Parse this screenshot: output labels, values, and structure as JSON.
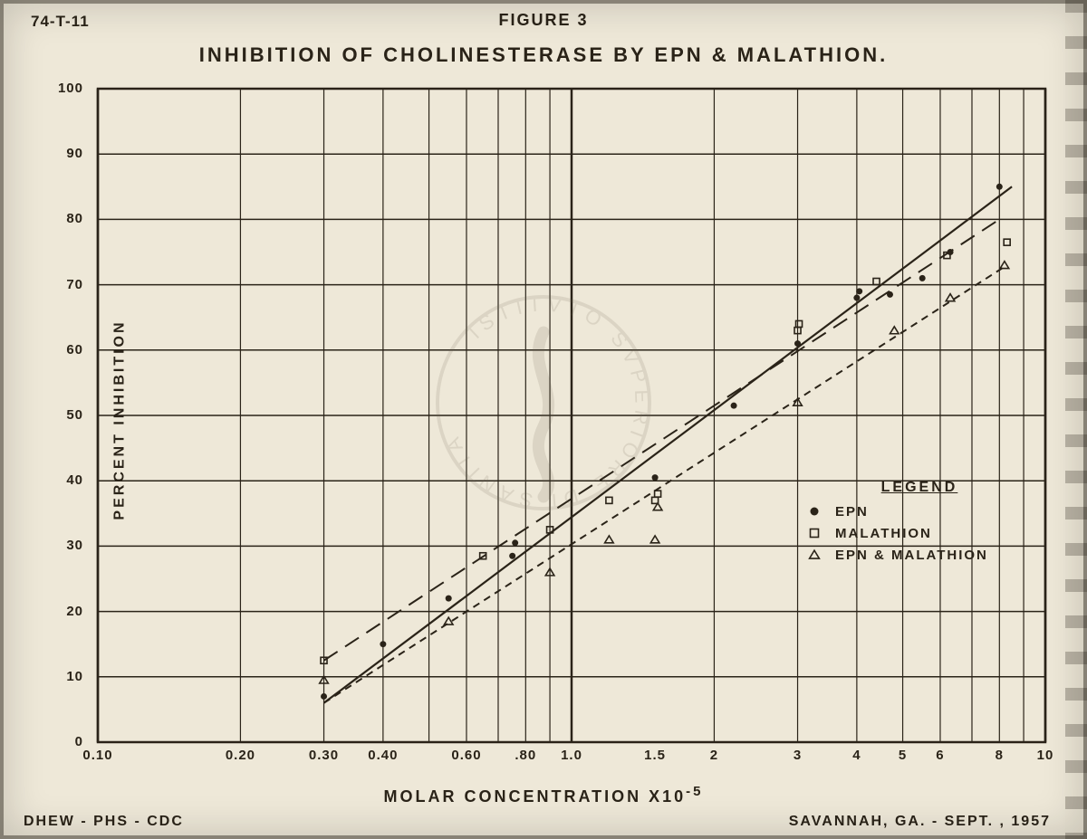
{
  "doc_id": "74-T-11",
  "figure_label": "FIGURE 3",
  "title": "INHIBITION  OF  CHOLINESTERASE  BY  EPN  &  MALATHION.",
  "footer_left": "DHEW - PHS - CDC",
  "footer_right": "SAVANNAH, GA. - SEPT. , 1957",
  "ylabel": "PERCENT  INHIBITION",
  "xlabel": "MOLAR  CONCENTRATION  X10",
  "xlabel_sup": "-5",
  "chart": {
    "type": "scatter-with-fit-lines-logx",
    "background_color": "#eee8d8",
    "ink_color": "#2a2318",
    "frame_linewidth": 2.5,
    "grid_linewidth": 1.5,
    "minor_grid_linewidth": 1.2,
    "x_scale": "log10",
    "xlim": [
      0.1,
      10
    ],
    "x_major": [
      0.1,
      1.0,
      10
    ],
    "x_ticks": [
      {
        "v": 0.1,
        "label": "0.10"
      },
      {
        "v": 0.2,
        "label": "0.20"
      },
      {
        "v": 0.3,
        "label": "0.30"
      },
      {
        "v": 0.4,
        "label": "0.40"
      },
      {
        "v": 0.6,
        "label": "0.60"
      },
      {
        "v": 0.8,
        "label": ".80"
      },
      {
        "v": 1.0,
        "label": "1.0"
      },
      {
        "v": 1.5,
        "label": "1.5"
      },
      {
        "v": 2.0,
        "label": "2"
      },
      {
        "v": 3.0,
        "label": "3"
      },
      {
        "v": 4.0,
        "label": "4"
      },
      {
        "v": 5.0,
        "label": "5"
      },
      {
        "v": 6.0,
        "label": "6"
      },
      {
        "v": 8.0,
        "label": "8"
      },
      {
        "v": 10.0,
        "label": "10"
      }
    ],
    "y_scale": "linear",
    "ylim": [
      0,
      100
    ],
    "ytick_step": 10,
    "legend": {
      "title": "LEGEND",
      "items": [
        {
          "marker": "dot",
          "label": "EPN"
        },
        {
          "marker": "square",
          "label": "MALATHION"
        },
        {
          "marker": "triangle",
          "label": "EPN  &  MALATHION"
        }
      ]
    },
    "series": [
      {
        "name": "EPN",
        "marker": "dot",
        "marker_size": 7,
        "color": "#2a2318",
        "fit": {
          "style": "solid",
          "width": 2.2,
          "p1": {
            "x": 0.3,
            "y": 6
          },
          "p2": {
            "x": 8.5,
            "y": 85
          }
        },
        "points": [
          {
            "x": 0.3,
            "y": 7
          },
          {
            "x": 0.4,
            "y": 15
          },
          {
            "x": 0.55,
            "y": 22
          },
          {
            "x": 0.75,
            "y": 28.5
          },
          {
            "x": 0.76,
            "y": 30.5
          },
          {
            "x": 1.5,
            "y": 40.5
          },
          {
            "x": 2.2,
            "y": 51.5
          },
          {
            "x": 3.0,
            "y": 61
          },
          {
            "x": 4.0,
            "y": 68
          },
          {
            "x": 4.05,
            "y": 69
          },
          {
            "x": 4.7,
            "y": 68.5
          },
          {
            "x": 5.5,
            "y": 71
          },
          {
            "x": 6.3,
            "y": 75
          },
          {
            "x": 8.0,
            "y": 85
          }
        ]
      },
      {
        "name": "MALATHION",
        "marker": "square",
        "marker_size": 7,
        "color": "#2a2318",
        "fit": {
          "style": "longdash",
          "width": 2.0,
          "p1": {
            "x": 0.3,
            "y": 12.5
          },
          "p2": {
            "x": 8.0,
            "y": 80
          }
        },
        "points": [
          {
            "x": 0.3,
            "y": 12.5
          },
          {
            "x": 0.65,
            "y": 28.5
          },
          {
            "x": 0.9,
            "y": 32.5
          },
          {
            "x": 1.2,
            "y": 37
          },
          {
            "x": 1.5,
            "y": 37
          },
          {
            "x": 1.52,
            "y": 38
          },
          {
            "x": 3.0,
            "y": 63
          },
          {
            "x": 3.02,
            "y": 64
          },
          {
            "x": 4.4,
            "y": 70.5
          },
          {
            "x": 6.2,
            "y": 74.5
          },
          {
            "x": 8.3,
            "y": 76.5
          }
        ]
      },
      {
        "name": "EPN & MALATHION",
        "marker": "triangle",
        "marker_size": 8,
        "color": "#2a2318",
        "fit": {
          "style": "shortdash",
          "width": 2.0,
          "p1": {
            "x": 0.3,
            "y": 6
          },
          "p2": {
            "x": 8.3,
            "y": 73
          }
        },
        "points": [
          {
            "x": 0.3,
            "y": 9.5
          },
          {
            "x": 0.55,
            "y": 18.5
          },
          {
            "x": 0.9,
            "y": 26
          },
          {
            "x": 1.2,
            "y": 31
          },
          {
            "x": 1.5,
            "y": 31
          },
          {
            "x": 1.52,
            "y": 36
          },
          {
            "x": 3.0,
            "y": 52
          },
          {
            "x": 4.8,
            "y": 63
          },
          {
            "x": 6.3,
            "y": 68
          },
          {
            "x": 8.2,
            "y": 73
          }
        ]
      }
    ]
  }
}
